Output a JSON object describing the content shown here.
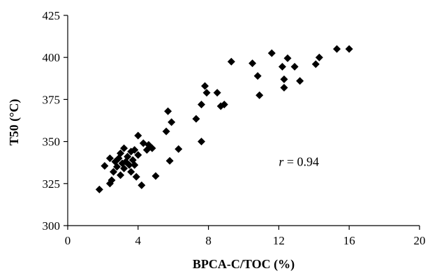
{
  "chart_data": {
    "type": "scatter",
    "xlabel": "BPCA-C/TOC (%)",
    "ylabel": "T50 (°C)",
    "xlim": [
      0,
      20
    ],
    "ylim": [
      300,
      425
    ],
    "xticks": [
      0,
      4,
      8,
      12,
      16,
      20
    ],
    "yticks": [
      300,
      325,
      350,
      375,
      400,
      425
    ],
    "grid": false,
    "legend": "none",
    "marker": "diamond",
    "marker_color": "#000000",
    "annotation": {
      "italic": "r",
      "text": " = 0.94",
      "x": 12.0,
      "y": 338
    },
    "series": [
      {
        "points": [
          [
            1.8,
            321.5
          ],
          [
            2.1,
            335.5
          ],
          [
            2.4,
            325
          ],
          [
            2.4,
            340
          ],
          [
            2.5,
            327
          ],
          [
            2.6,
            332
          ],
          [
            2.7,
            338
          ],
          [
            2.8,
            335
          ],
          [
            2.9,
            340
          ],
          [
            3.0,
            343
          ],
          [
            3.0,
            330
          ],
          [
            3.1,
            337
          ],
          [
            3.2,
            334
          ],
          [
            3.2,
            346
          ],
          [
            3.3,
            338
          ],
          [
            3.4,
            341
          ],
          [
            3.5,
            336
          ],
          [
            3.6,
            344
          ],
          [
            3.6,
            332
          ],
          [
            3.7,
            339
          ],
          [
            3.8,
            345
          ],
          [
            3.8,
            336
          ],
          [
            3.9,
            329
          ],
          [
            4.0,
            342
          ],
          [
            4.0,
            353.5
          ],
          [
            4.2,
            324
          ],
          [
            4.3,
            349
          ],
          [
            4.5,
            345
          ],
          [
            4.6,
            348
          ],
          [
            4.8,
            346
          ],
          [
            5.0,
            329.5
          ],
          [
            5.6,
            356
          ],
          [
            5.7,
            368
          ],
          [
            5.8,
            338.5
          ],
          [
            5.9,
            361.5
          ],
          [
            6.3,
            345.5
          ],
          [
            7.3,
            363.5
          ],
          [
            7.6,
            372
          ],
          [
            7.6,
            350
          ],
          [
            7.8,
            383
          ],
          [
            7.9,
            379
          ],
          [
            8.5,
            379
          ],
          [
            8.7,
            371
          ],
          [
            8.9,
            372
          ],
          [
            9.3,
            397.5
          ],
          [
            10.5,
            396.5
          ],
          [
            10.8,
            389
          ],
          [
            10.9,
            377.5
          ],
          [
            11.6,
            402.5
          ],
          [
            12.2,
            394.5
          ],
          [
            12.3,
            382
          ],
          [
            12.3,
            387
          ],
          [
            12.5,
            399.5
          ],
          [
            12.9,
            394.5
          ],
          [
            13.2,
            386
          ],
          [
            14.1,
            396
          ],
          [
            14.3,
            400
          ],
          [
            15.3,
            405
          ],
          [
            16.0,
            405
          ]
        ]
      }
    ]
  }
}
